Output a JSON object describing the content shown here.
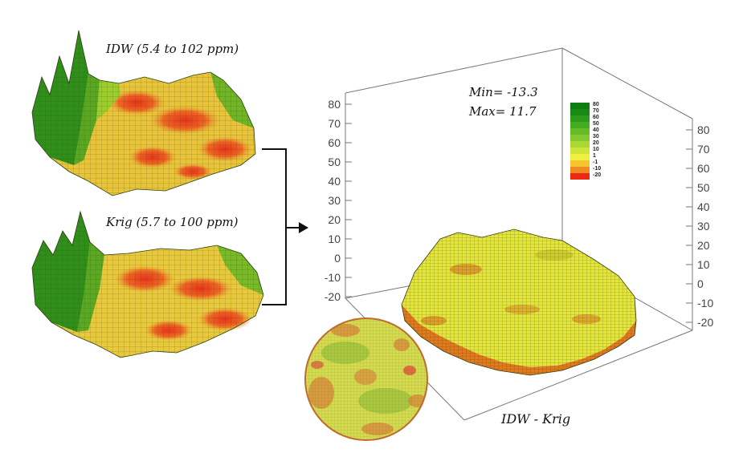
{
  "panels": {
    "idw": {
      "title": "IDW (5.4 to 102 ppm)"
    },
    "krig": {
      "title": "Krig (5.7 to 100 ppm)"
    }
  },
  "difference": {
    "min_label": "Min= -13.3",
    "max_label": "Max= 11.7",
    "caption": "IDW - Krig",
    "left_axis_ticks": [
      "80",
      "70",
      "60",
      "50",
      "40",
      "30",
      "20",
      "10",
      "0",
      "-10",
      "-20"
    ],
    "right_axis_ticks": [
      "80",
      "70",
      "60",
      "50",
      "40",
      "30",
      "20",
      "10",
      "0",
      "-10",
      "-20"
    ]
  },
  "legend": {
    "items": [
      {
        "label": "80",
        "color": "#0b7d10"
      },
      {
        "label": "70",
        "color": "#178a14"
      },
      {
        "label": "60",
        "color": "#2c9a1a"
      },
      {
        "label": "50",
        "color": "#45ab20"
      },
      {
        "label": "40",
        "color": "#63bb28"
      },
      {
        "label": "30",
        "color": "#86c92e"
      },
      {
        "label": "20",
        "color": "#a9d733"
      },
      {
        "label": "10",
        "color": "#cde53a"
      },
      {
        "label": "1",
        "color": "#eef040"
      },
      {
        "label": "-1",
        "color": "#f6c431"
      },
      {
        "label": "-10",
        "color": "#f08a20"
      },
      {
        "label": "-20",
        "color": "#ea2a14"
      }
    ]
  }
}
